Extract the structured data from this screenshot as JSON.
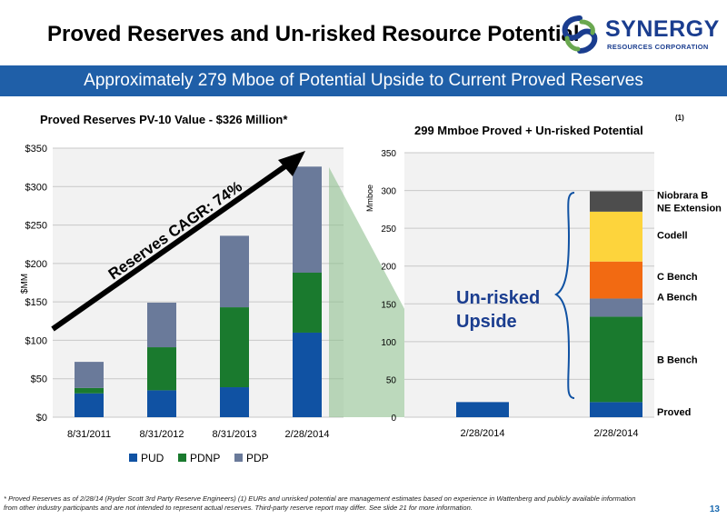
{
  "header": {
    "title": "Proved Reserves and Un-risked Resource Potential",
    "logo_name": "SYNERGY",
    "logo_sub": "RESOURCES CORPORATION"
  },
  "banner": {
    "text": "Approximately 279 Mboe of Potential Upside to Current Proved Reserves"
  },
  "annotations": {
    "cagr": "Reserves CAGR: 74%",
    "unrisked": [
      "Un-risked",
      "Upside"
    ],
    "superscript": "(1)"
  },
  "footer": {
    "footnote_line1": "* Proved Reserves as of  2/28/14  (Ryder Scott 3rd Party Reserve Engineers)  (1) EURs and unrisked potential are management estimates based on experience in Wattenberg and publicly available information",
    "footnote_line2": "from other industry participants and are not intended to represent actual reserves. Third-party reserve report may differ. See slide 21 for more information.",
    "page": "13"
  },
  "colors": {
    "PUD": "#1052a3",
    "PDNP": "#1a7a2e",
    "PDP": "#6a7a9a",
    "Proved": "#1052a3",
    "B Bench": "#1a7a2e",
    "A Bench": "#6a7a9a",
    "C Bench": "#f26a12",
    "Codell": "#fdd43c",
    "Niobrara B NE Extension": "#4d4d4d",
    "banner": "#1f5fa8",
    "arrow_fill": "#8fbf8f"
  },
  "chart_data": [
    {
      "type": "bar",
      "stacked": true,
      "title": "Proved Reserves PV-10 Value - $326 Million*",
      "ylabel": "$MM",
      "xlabel": "",
      "ylim": [
        0,
        350
      ],
      "yticks": [
        "$0",
        "$50",
        "$100",
        "$150",
        "$200",
        "$250",
        "$300",
        "$350"
      ],
      "categories": [
        "8/31/2011",
        "8/31/2012",
        "8/31/2013",
        "2/28/2014"
      ],
      "series": [
        {
          "name": "PUD",
          "values": [
            31,
            35,
            39,
            110
          ]
        },
        {
          "name": "PDNP",
          "values": [
            7,
            56,
            104,
            78
          ]
        },
        {
          "name": "PDP",
          "values": [
            34,
            58,
            93,
            138
          ]
        }
      ],
      "legend": "bottom",
      "grid": true
    },
    {
      "type": "bar",
      "stacked": true,
      "title": "299 Mmboe Proved + Un-risked Potential",
      "ylabel": "Mmboe",
      "xlabel": "",
      "ylim": [
        0,
        350
      ],
      "yticks": [
        "0",
        "50",
        "100",
        "150",
        "200",
        "250",
        "300",
        "350"
      ],
      "categories": [
        "2/28/2014",
        "2/28/2014"
      ],
      "series": [
        {
          "name": "Proved",
          "values": [
            20,
            20
          ]
        },
        {
          "name": "B Bench",
          "values": [
            0,
            113
          ]
        },
        {
          "name": "A Bench",
          "values": [
            0,
            24
          ]
        },
        {
          "name": "C Bench",
          "values": [
            0,
            49
          ]
        },
        {
          "name": "Codell",
          "values": [
            0,
            66
          ]
        },
        {
          "name": "Niobrara B NE Extension",
          "values": [
            0,
            27
          ]
        }
      ],
      "segment_labels": [
        "Proved",
        "B Bench",
        "A Bench",
        "C Bench",
        "Codell",
        "Niobrara B",
        "NE Extension"
      ],
      "grid": true
    }
  ]
}
